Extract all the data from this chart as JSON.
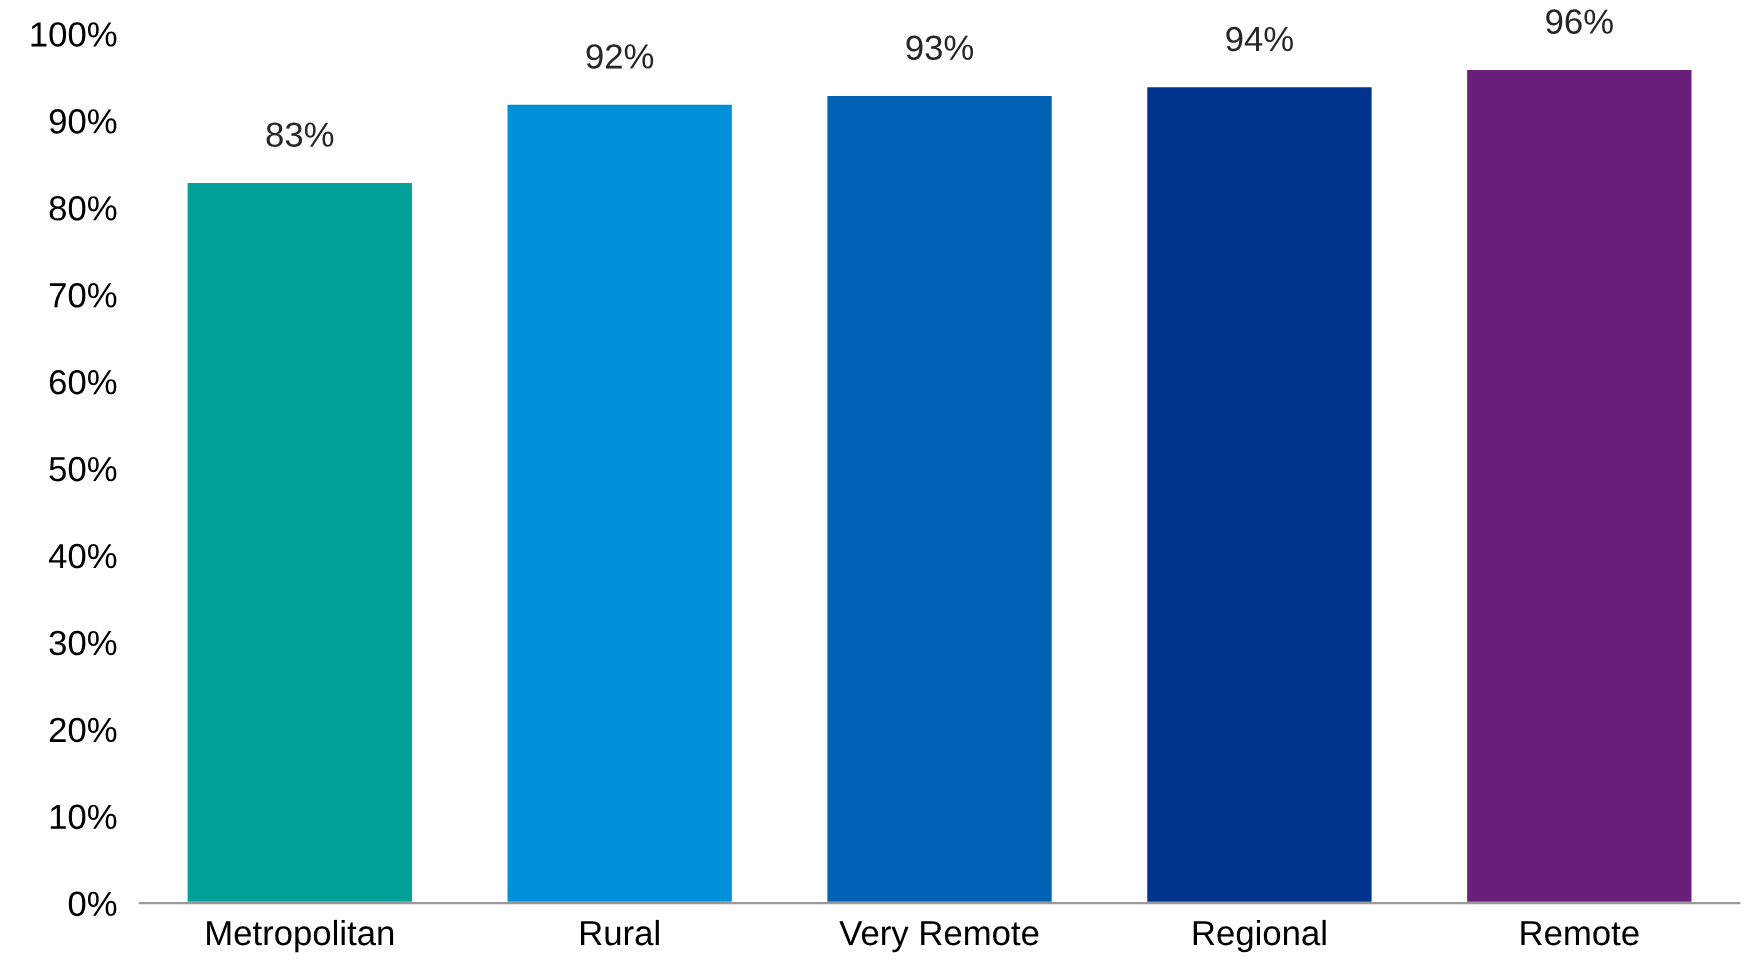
{
  "chart_data": {
    "type": "bar",
    "categories": [
      "Metropolitan",
      "Rural",
      "Very Remote",
      "Regional",
      "Remote"
    ],
    "values": [
      83,
      92,
      93,
      94,
      96
    ],
    "colors": [
      "#00a19a",
      "#0090da",
      "#0061b5",
      "#00338d",
      "#6a1f7a"
    ],
    "value_labels": [
      "83%",
      "92%",
      "93%",
      "94%",
      "96%"
    ],
    "ylim": [
      0,
      100
    ],
    "yticks": [
      {
        "value": 0,
        "label": "0%"
      },
      {
        "value": 10,
        "label": "10%"
      },
      {
        "value": 20,
        "label": "20%"
      },
      {
        "value": 30,
        "label": "30%"
      },
      {
        "value": 40,
        "label": "40%"
      },
      {
        "value": 50,
        "label": "50%"
      },
      {
        "value": 60,
        "label": "60%"
      },
      {
        "value": 70,
        "label": "70%"
      },
      {
        "value": 80,
        "label": "80%"
      },
      {
        "value": 90,
        "label": "90%"
      },
      {
        "value": 100,
        "label": "100%"
      }
    ],
    "grid": false,
    "legend": false
  }
}
